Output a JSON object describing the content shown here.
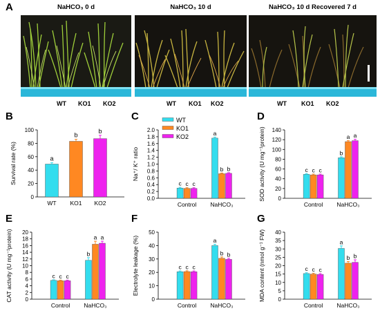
{
  "figure": {
    "panel_letters": [
      "A",
      "B",
      "C",
      "D",
      "E",
      "F",
      "G"
    ],
    "photos": [
      {
        "title": "NaHCO₃ 0 d",
        "labels": [
          "WT",
          "KO1",
          "KO2"
        ]
      },
      {
        "title": "NaHCO₃ 10 d",
        "labels": [
          "WT",
          "KO1",
          "KO2"
        ]
      },
      {
        "title": "NaHCO₃ 10 d Recovered 7 d",
        "labels": [
          "WT",
          "KO1",
          "KO2"
        ]
      }
    ]
  },
  "colors": {
    "WT": "#33ddee",
    "KO1": "#ff8822",
    "KO2": "#ee22ee"
  },
  "chart_data": [
    {
      "id": "B",
      "type": "bar",
      "ylabel": "Survival rate (%)",
      "ylim": [
        0,
        100
      ],
      "yticks": [
        "0",
        "20",
        "40",
        "60",
        "80",
        "100"
      ],
      "categories": [
        "WT",
        "KO1",
        "KO2"
      ],
      "values": [
        49,
        83,
        87
      ],
      "errors": [
        2,
        3,
        5
      ],
      "letters": [
        "a",
        "b",
        "b"
      ]
    },
    {
      "id": "C",
      "type": "bar",
      "ylabel": "Na⁺/ K⁺ ratio",
      "ylim": [
        0,
        2.0
      ],
      "yticks": [
        "0.0",
        "0.2",
        "0.4",
        "0.6",
        "0.8",
        "1.0",
        "1.2",
        "1.4",
        "1.6",
        "1.8",
        "2.0"
      ],
      "categories": [
        "Control",
        "NaHCO₃"
      ],
      "legend": [
        "WT",
        "KO1",
        "KO2"
      ],
      "series": [
        {
          "name": "WT",
          "values": [
            0.3,
            1.76
          ],
          "errors": [
            0.02,
            0.03
          ],
          "letters": [
            "c",
            "a"
          ]
        },
        {
          "name": "KO1",
          "values": [
            0.29,
            0.72
          ],
          "errors": [
            0.02,
            0.02
          ],
          "letters": [
            "c",
            "b"
          ]
        },
        {
          "name": "KO2",
          "values": [
            0.29,
            0.73
          ],
          "errors": [
            0.02,
            0.02
          ],
          "letters": [
            "c",
            "b"
          ]
        }
      ]
    },
    {
      "id": "D",
      "type": "bar",
      "ylabel": "SOD activity (U mg⁻¹protein)",
      "ylim": [
        0,
        140
      ],
      "yticks": [
        "0",
        "20",
        "40",
        "60",
        "80",
        "100",
        "120",
        "140"
      ],
      "categories": [
        "Control",
        "NaHCO₃"
      ],
      "series": [
        {
          "name": "WT",
          "values": [
            49,
            83
          ],
          "errors": [
            1.5,
            2
          ],
          "letters": [
            "c",
            "b"
          ]
        },
        {
          "name": "KO1",
          "values": [
            48,
            116
          ],
          "errors": [
            1.5,
            2
          ],
          "letters": [
            "c",
            "a"
          ]
        },
        {
          "name": "KO2",
          "values": [
            48,
            118
          ],
          "errors": [
            1.5,
            3
          ],
          "letters": [
            "c",
            "a"
          ]
        }
      ]
    },
    {
      "id": "E",
      "type": "bar",
      "ylabel": "CAT activity (U mg⁻¹protein)",
      "ylim": [
        0,
        20
      ],
      "yticks": [
        "0",
        "2",
        "4",
        "6",
        "8",
        "10",
        "12",
        "14",
        "16",
        "18",
        "20"
      ],
      "categories": [
        "Control",
        "NaHCO₃"
      ],
      "series": [
        {
          "name": "WT",
          "values": [
            5.6,
            11.6
          ],
          "errors": [
            0.2,
            0.8
          ],
          "letters": [
            "c",
            "b"
          ]
        },
        {
          "name": "KO1",
          "values": [
            5.5,
            16.4
          ],
          "errors": [
            0.2,
            0.9
          ],
          "letters": [
            "c",
            "a"
          ]
        },
        {
          "name": "KO2",
          "values": [
            5.5,
            16.7
          ],
          "errors": [
            0.2,
            0.6
          ],
          "letters": [
            "c",
            "a"
          ]
        }
      ]
    },
    {
      "id": "F",
      "type": "bar",
      "ylabel": "Electrolyte leakage (%)",
      "ylim": [
        0,
        50
      ],
      "yticks": [
        "0",
        "10",
        "20",
        "30",
        "40",
        "50"
      ],
      "categories": [
        "Control",
        "NaHCO₃"
      ],
      "series": [
        {
          "name": "WT",
          "values": [
            20.5,
            40
          ],
          "errors": [
            0.6,
            1
          ],
          "letters": [
            "c",
            "a"
          ]
        },
        {
          "name": "KO1",
          "values": [
            20.6,
            30.5
          ],
          "errors": [
            0.6,
            1
          ],
          "letters": [
            "c",
            "b"
          ]
        },
        {
          "name": "KO2",
          "values": [
            20.5,
            29.7
          ],
          "errors": [
            0.6,
            0.8
          ],
          "letters": [
            "c",
            "b"
          ]
        }
      ]
    },
    {
      "id": "G",
      "type": "bar",
      "ylabel": "MDA content (nmol g⁻¹ FW)",
      "ylim": [
        0,
        40
      ],
      "yticks": [
        "0",
        "5",
        "10",
        "15",
        "20",
        "25",
        "30",
        "35",
        "40"
      ],
      "categories": [
        "Control",
        "NaHCO₃"
      ],
      "series": [
        {
          "name": "WT",
          "values": [
            15.3,
            30.3
          ],
          "errors": [
            0.5,
            1.5
          ],
          "letters": [
            "c",
            "a"
          ]
        },
        {
          "name": "KO1",
          "values": [
            15,
            21.5
          ],
          "errors": [
            0.5,
            1
          ],
          "letters": [
            "c",
            "b"
          ]
        },
        {
          "name": "KO2",
          "values": [
            14.8,
            22
          ],
          "errors": [
            0.5,
            1.5
          ],
          "letters": [
            "c",
            "b"
          ]
        }
      ]
    }
  ]
}
